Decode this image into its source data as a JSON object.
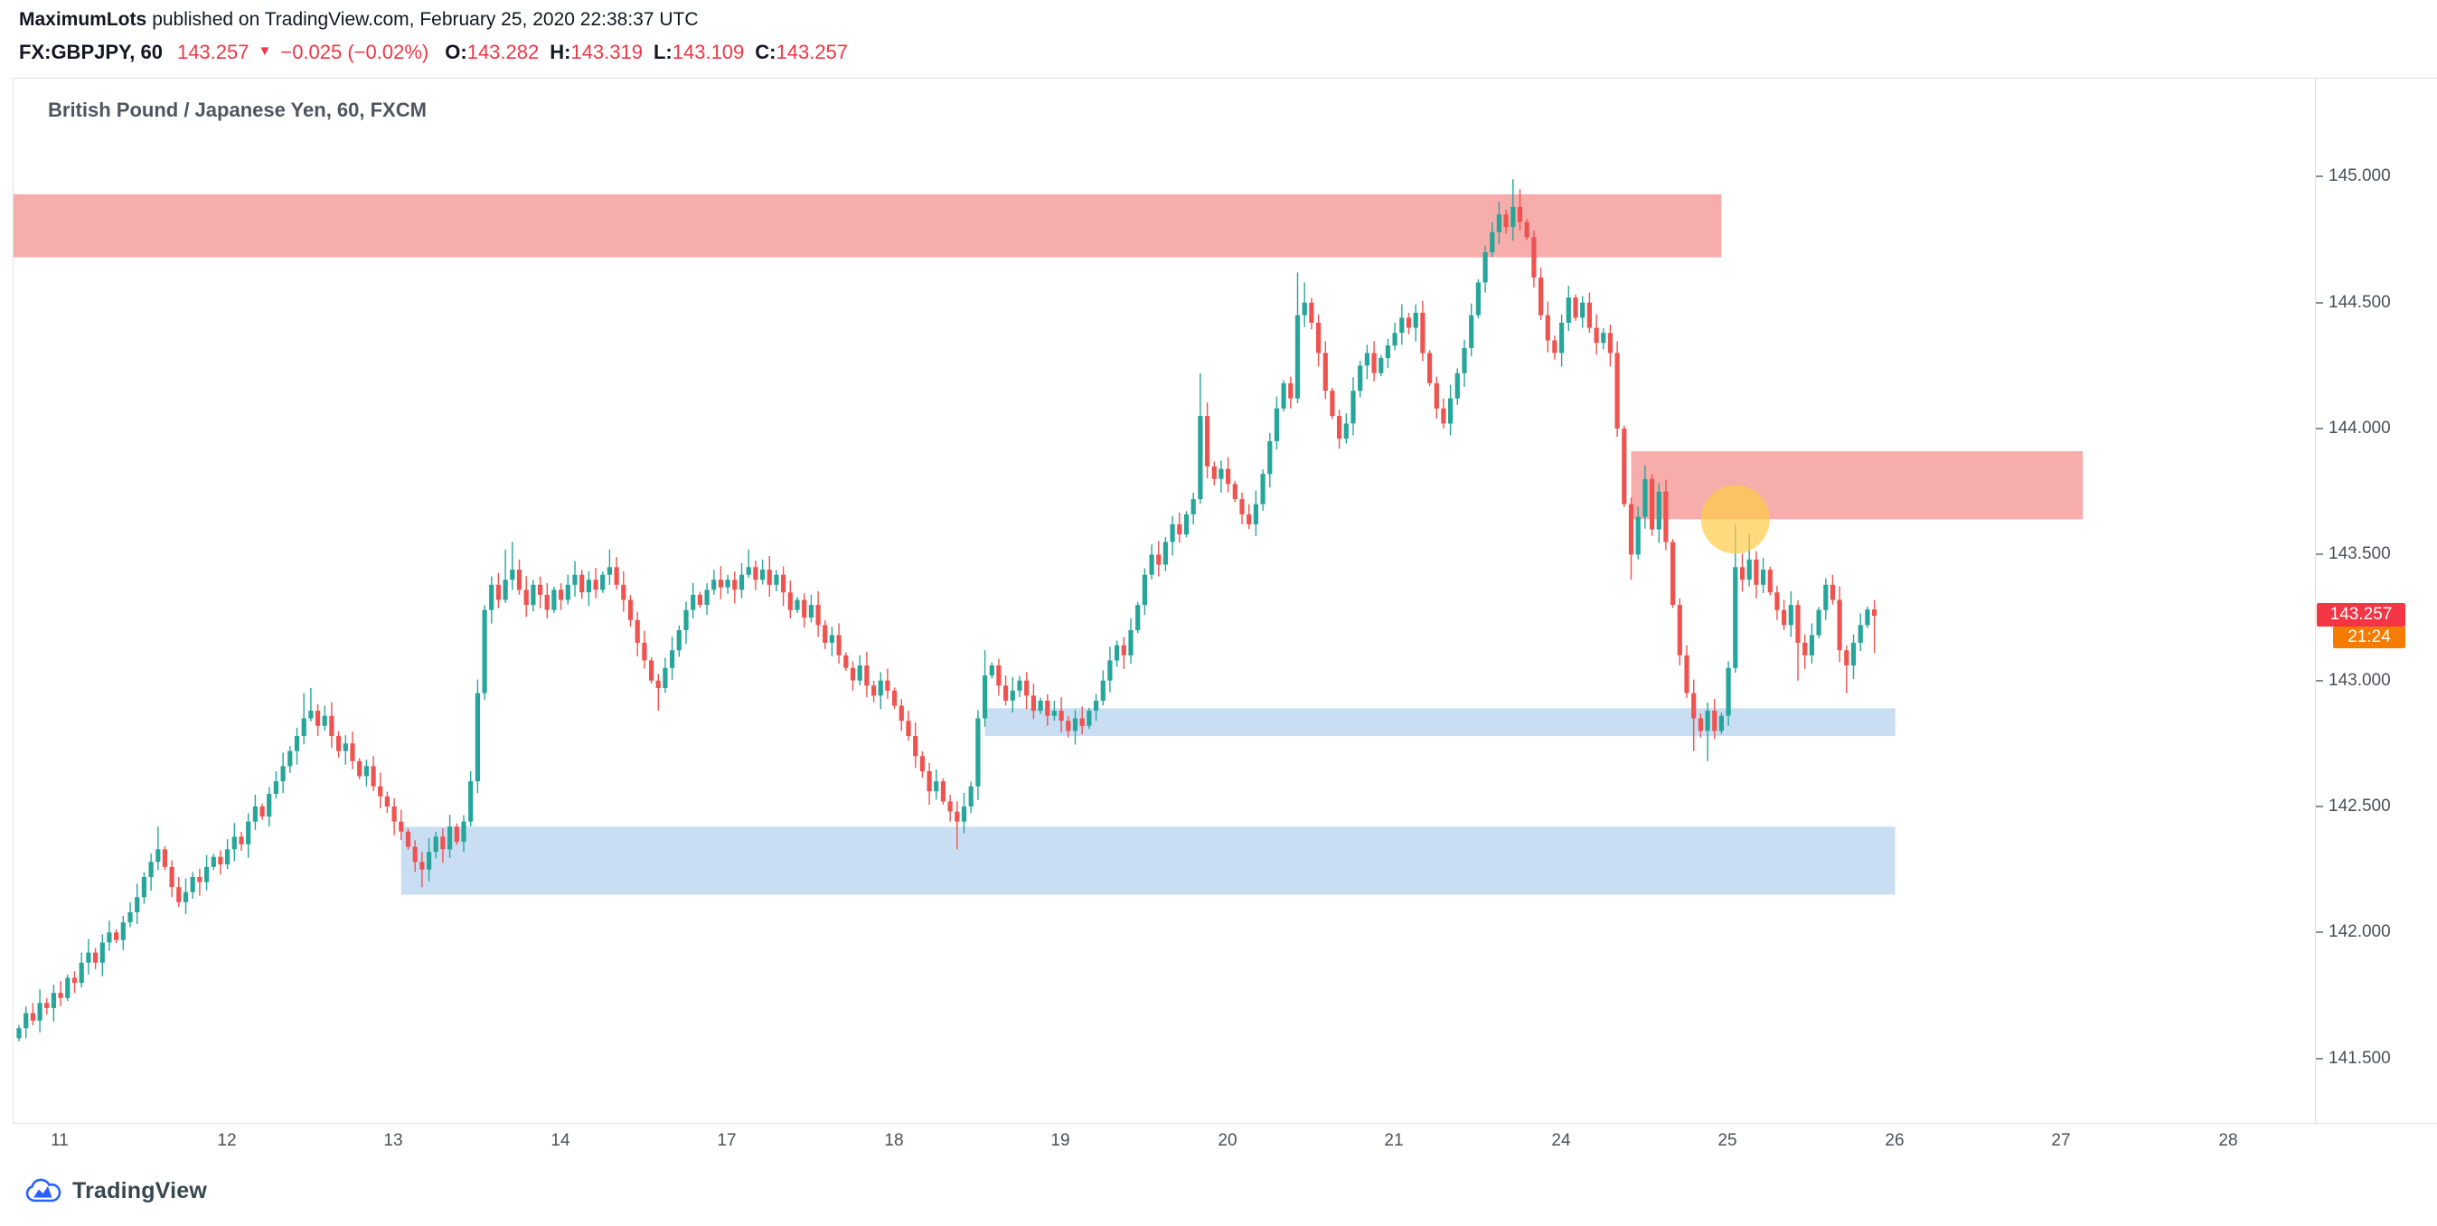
{
  "header": {
    "author": "MaximumLots",
    "published": "published on TradingView.com, February 25, 2020 22:38:37 UTC",
    "symbol": "FX:GBPJPY, 60",
    "price": "143.257",
    "direction_icon": "▼",
    "change": "−0.025 (−0.02%)",
    "ohlc": [
      {
        "label": "O:",
        "value": "143.282"
      },
      {
        "label": "H:",
        "value": "143.319"
      },
      {
        "label": "L:",
        "value": "143.109"
      },
      {
        "label": "C:",
        "value": "143.257"
      }
    ]
  },
  "chart": {
    "title": "British Pound / Japanese Yen, 60, FXCM"
  },
  "axis": {
    "price_ticks": [
      "145.000",
      "144.500",
      "144.000",
      "143.500",
      "143.000",
      "142.500",
      "142.000",
      "141.500"
    ],
    "time_labels": [
      "11",
      "12",
      "13",
      "14",
      "17",
      "18",
      "19",
      "20",
      "21",
      "24",
      "25",
      "26",
      "27",
      "28"
    ]
  },
  "badges": {
    "last_price": "143.257",
    "countdown": "21:24"
  },
  "footer": {
    "brand": "TradingView"
  },
  "chart_data": {
    "type": "candlestick",
    "symbol": "FX:GBPJPY",
    "timeframe_minutes": 60,
    "exchange": "FXCM",
    "title": "British Pound / Japanese Yen, 60, FXCM",
    "y_axis": {
      "ticks": [
        145.0,
        144.5,
        144.0,
        143.5,
        143.0,
        142.5,
        142.0,
        141.5
      ],
      "visible_range": [
        141.24,
        145.39
      ],
      "grid": false
    },
    "x_axis": {
      "day_labels": [
        "11",
        "12",
        "13",
        "14",
        "17",
        "18",
        "19",
        "20",
        "21",
        "24",
        "25",
        "26",
        "27",
        "28"
      ],
      "first_label_index": 6,
      "candles_per_day": 24
    },
    "last_price": 143.257,
    "countdown": "21:24",
    "colors": {
      "up": "#26a69a",
      "down": "#ef5350"
    },
    "open_first": 141.58,
    "closes": [
      141.62,
      141.68,
      141.65,
      141.72,
      141.7,
      141.76,
      141.74,
      141.82,
      141.8,
      141.88,
      141.92,
      141.88,
      141.96,
      142.0,
      141.97,
      142.04,
      142.08,
      142.14,
      142.22,
      142.28,
      142.33,
      142.26,
      142.18,
      142.12,
      142.16,
      142.22,
      142.2,
      142.26,
      142.3,
      142.27,
      142.33,
      142.38,
      142.35,
      142.44,
      142.5,
      142.46,
      142.55,
      142.6,
      142.66,
      142.72,
      142.78,
      142.85,
      142.88,
      142.82,
      142.86,
      142.78,
      142.72,
      142.75,
      142.68,
      142.62,
      142.66,
      142.58,
      142.54,
      142.5,
      142.44,
      142.4,
      142.34,
      142.28,
      142.25,
      142.32,
      142.38,
      142.33,
      142.42,
      142.36,
      142.44,
      142.6,
      142.95,
      143.28,
      143.38,
      143.32,
      143.4,
      143.44,
      143.36,
      143.3,
      143.38,
      143.34,
      143.28,
      143.36,
      143.32,
      143.38,
      143.42,
      143.35,
      143.4,
      143.36,
      143.42,
      143.45,
      143.38,
      143.32,
      143.24,
      143.15,
      143.08,
      143.0,
      142.97,
      143.05,
      143.12,
      143.2,
      143.28,
      143.34,
      143.3,
      143.36,
      143.4,
      143.37,
      143.4,
      143.36,
      143.42,
      143.45,
      143.4,
      143.44,
      143.38,
      143.42,
      143.35,
      143.28,
      143.32,
      143.25,
      143.3,
      143.22,
      143.15,
      143.18,
      143.1,
      143.05,
      143.0,
      143.06,
      142.98,
      142.94,
      143.0,
      142.96,
      142.9,
      142.84,
      142.78,
      142.7,
      142.64,
      142.56,
      142.6,
      142.52,
      142.48,
      142.44,
      142.5,
      142.58,
      142.85,
      143.02,
      143.06,
      142.98,
      142.92,
      142.96,
      143.0,
      142.94,
      142.88,
      142.92,
      142.86,
      142.88,
      142.84,
      142.8,
      142.85,
      142.82,
      142.88,
      142.92,
      143.0,
      143.08,
      143.14,
      143.1,
      143.2,
      143.3,
      143.42,
      143.5,
      143.46,
      143.55,
      143.62,
      143.58,
      143.66,
      143.72,
      144.05,
      143.85,
      143.8,
      143.84,
      143.78,
      143.72,
      143.66,
      143.62,
      143.7,
      143.82,
      143.95,
      144.08,
      144.18,
      144.12,
      144.45,
      144.5,
      144.42,
      144.3,
      144.15,
      144.05,
      143.96,
      144.02,
      144.15,
      144.25,
      144.3,
      144.22,
      144.28,
      144.33,
      144.38,
      144.44,
      144.4,
      144.46,
      144.3,
      144.18,
      144.08,
      144.02,
      144.12,
      144.22,
      144.32,
      144.45,
      144.58,
      144.7,
      144.78,
      144.85,
      144.8,
      144.88,
      144.82,
      144.76,
      144.6,
      144.45,
      144.35,
      144.3,
      144.42,
      144.52,
      144.44,
      144.5,
      144.4,
      144.34,
      144.38,
      144.3,
      144.0,
      143.7,
      143.5,
      143.65,
      143.8,
      143.6,
      143.75,
      143.55,
      143.3,
      143.1,
      142.95,
      142.85,
      142.8,
      142.88,
      142.8,
      142.86,
      143.05,
      143.45,
      143.4,
      143.48,
      143.38,
      143.44,
      143.35,
      143.28,
      143.22,
      143.3,
      143.15,
      143.1,
      143.18,
      143.28,
      143.38,
      143.32,
      143.12,
      143.06,
      143.15,
      143.22,
      143.282,
      143.257
    ],
    "high_overrides": {
      "20": 142.42,
      "41": 142.95,
      "42": 142.97,
      "70": 143.52,
      "71": 143.55,
      "85": 143.52,
      "105": 143.52,
      "139": 143.12,
      "170": 144.22,
      "184": 144.62,
      "185": 144.58,
      "213": 144.9,
      "215": 144.99,
      "216": 144.95,
      "247": 143.62,
      "249": 143.58,
      "267": 143.319
    },
    "low_overrides": {
      "58": 142.18,
      "92": 142.88,
      "135": 142.33,
      "232": 143.4,
      "241": 142.72,
      "243": 142.68,
      "256": 143.0,
      "263": 142.95,
      "267": 143.109
    },
    "last_candle": {
      "o": 143.282,
      "h": 143.319,
      "l": 143.109,
      "c": 143.257
    },
    "zones": [
      {
        "name": "supply-zone-upper",
        "color": "rgba(239,83,80,0.48)",
        "price_top": 144.93,
        "price_bottom": 144.68,
        "index_start": -2,
        "index_end": 245
      },
      {
        "name": "supply-zone-lower",
        "color": "rgba(239,83,80,0.48)",
        "price_top": 143.91,
        "price_bottom": 143.64,
        "index_start": 232,
        "index_end": 297
      },
      {
        "name": "demand-zone-upper",
        "color": "rgba(100,160,220,0.35)",
        "price_top": 142.89,
        "price_bottom": 142.78,
        "index_start": 139,
        "index_end": 270
      },
      {
        "name": "demand-zone-lower",
        "color": "rgba(100,160,220,0.35)",
        "price_top": 142.42,
        "price_bottom": 142.15,
        "index_start": 55,
        "index_end": 270
      }
    ],
    "highlight": {
      "shape": "circle",
      "index": 247,
      "price": 143.64,
      "radius": 38,
      "color": "rgba(255,202,70,0.7)"
    }
  }
}
